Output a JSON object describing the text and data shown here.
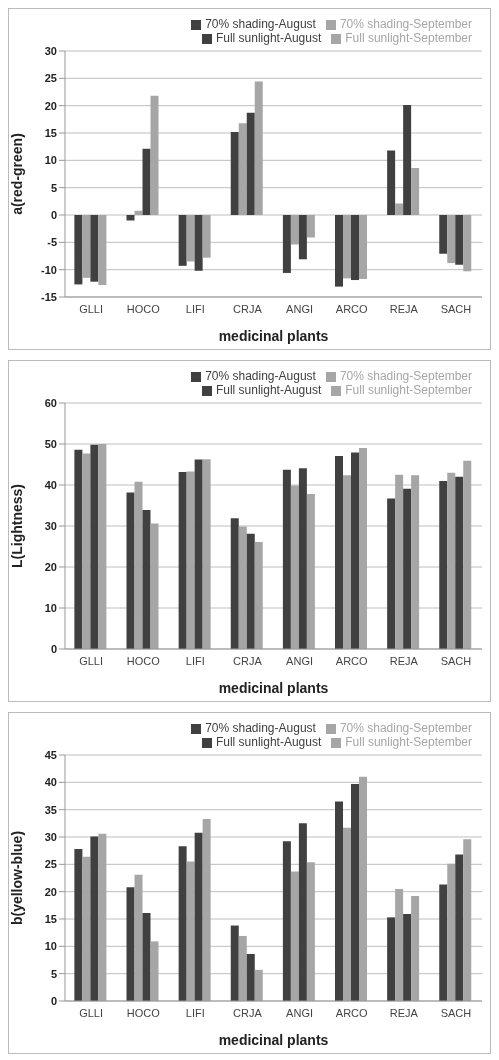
{
  "chart_data": [
    {
      "type": "bar",
      "ylabel": "a(red-green)",
      "xlabel": "medicinal plants",
      "categories": [
        "GLLI",
        "HOCO",
        "LIFI",
        "CRJA",
        "ANGI",
        "ARCO",
        "REJA",
        "SACH"
      ],
      "series": [
        {
          "name": "70% shading-August",
          "color": "#404040",
          "values": [
            -12.7,
            -1,
            -9.3,
            15.2,
            -10.6,
            -13.1,
            11.8,
            -7.1
          ]
        },
        {
          "name": "70% shading-September",
          "color": "#a6a6a6",
          "values": [
            -11.5,
            0.8,
            -8.5,
            16.8,
            -5.4,
            -11.6,
            2.1,
            -8.8
          ]
        },
        {
          "name": "Full sunlight-August",
          "color": "#404040",
          "values": [
            -12.2,
            12.1,
            -10.2,
            18.7,
            -8.1,
            -11.9,
            20.1,
            -9.1
          ]
        },
        {
          "name": "Full sunlight-September",
          "color": "#a6a6a6",
          "values": [
            -12.8,
            21.8,
            -7.8,
            24.4,
            -4.1,
            -11.7,
            8.6,
            -10.3
          ]
        }
      ],
      "ylim": [
        -15,
        30
      ],
      "yticks": [
        -15,
        -10,
        -5,
        0,
        5,
        10,
        15,
        20,
        25,
        30
      ],
      "grid": "y",
      "legend": "top right"
    },
    {
      "type": "bar",
      "ylabel": "L(Lightness)",
      "xlabel": "medicinal plants",
      "categories": [
        "GLLI",
        "HOCO",
        "LIFI",
        "CRJA",
        "ANGI",
        "ARCO",
        "REJA",
        "SACH"
      ],
      "series": [
        {
          "name": "70% shading-August",
          "color": "#404040",
          "values": [
            48.6,
            38.2,
            43.2,
            31.9,
            43.7,
            47.1,
            36.7,
            41.0
          ]
        },
        {
          "name": "70% shading-September",
          "color": "#a6a6a6",
          "values": [
            47.7,
            40.8,
            43.3,
            29.9,
            39.9,
            42.4,
            42.5,
            43.0
          ]
        },
        {
          "name": "Full sunlight-August",
          "color": "#404040",
          "values": [
            49.8,
            33.9,
            46.2,
            28.1,
            44.1,
            47.9,
            39.1,
            42.0
          ]
        },
        {
          "name": "Full sunlight-September",
          "color": "#a6a6a6",
          "values": [
            50.0,
            30.6,
            46.3,
            26.1,
            37.8,
            49.0,
            42.4,
            45.9
          ]
        }
      ],
      "ylim": [
        0,
        60
      ],
      "yticks": [
        0,
        10,
        20,
        30,
        40,
        50,
        60
      ],
      "grid": "y",
      "legend": "top right"
    },
    {
      "type": "bar",
      "ylabel": "b(yellow-blue)",
      "xlabel": "medicinal plants",
      "categories": [
        "GLLI",
        "HOCO",
        "LIFI",
        "CRJA",
        "ANGI",
        "ARCO",
        "REJA",
        "SACH"
      ],
      "series": [
        {
          "name": "70% shading-August",
          "color": "#404040",
          "values": [
            27.8,
            20.8,
            28.3,
            13.8,
            29.2,
            36.5,
            15.3,
            21.3
          ]
        },
        {
          "name": "70% shading-September",
          "color": "#a6a6a6",
          "values": [
            26.4,
            23.1,
            25.5,
            11.9,
            23.7,
            31.7,
            20.5,
            25.1
          ]
        },
        {
          "name": "Full sunlight-August",
          "color": "#404040",
          "values": [
            30.1,
            16.1,
            30.8,
            8.6,
            32.5,
            39.7,
            15.9,
            26.8
          ]
        },
        {
          "name": "Full sunlight-September",
          "color": "#a6a6a6",
          "values": [
            30.6,
            10.9,
            33.3,
            5.7,
            25.4,
            41.0,
            19.2,
            29.6
          ]
        }
      ],
      "ylim": [
        0,
        45
      ],
      "yticks": [
        0,
        5,
        10,
        15,
        20,
        25,
        30,
        35,
        40,
        45
      ],
      "grid": "y",
      "legend": "top right"
    }
  ]
}
